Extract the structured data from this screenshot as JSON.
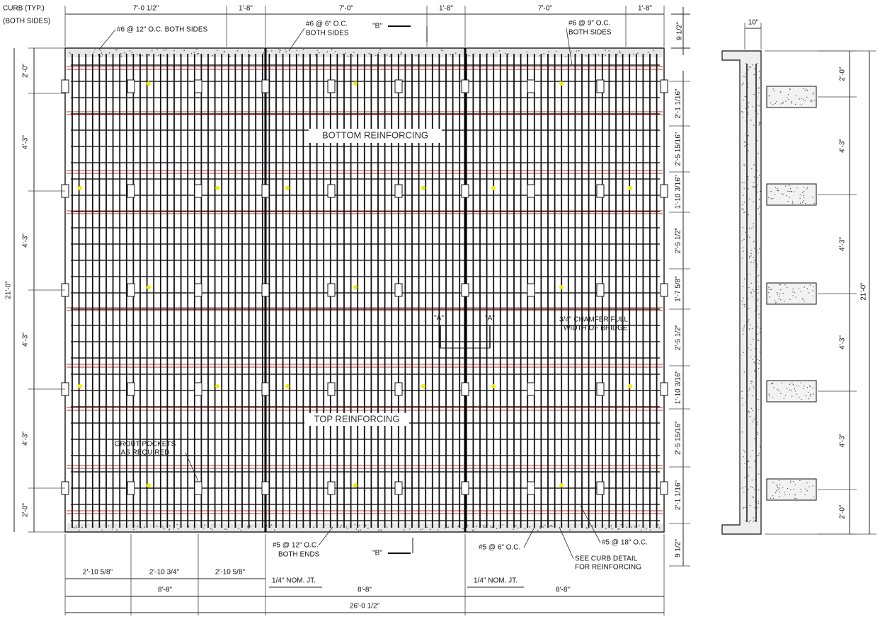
{
  "plan": {
    "curb_note": [
      "CURB (TYP.)",
      "(BOTH SIDES)"
    ],
    "top_dims": [
      "7'-0 1/2\"",
      "1'-8\"",
      "7'-0\"",
      "1'-8\"",
      "7'-0\"",
      "1'-8\""
    ],
    "top_edge_dim": "9 1/2\"",
    "callouts_top": [
      "#6 @ 12\" O.C. BOTH SIDES",
      "#6 @ 6\" O.C.",
      "BOTH SIDES",
      "#6 @ 9\" O.C.",
      "BOTH SIDES"
    ],
    "section_b": [
      "\"B\"",
      "\"B\""
    ],
    "labels": [
      "BOTTOM REINFORCING",
      "TOP REINFORCING",
      "GROUT POCKETS",
      "AS REQUIRED",
      "3/4\" CHAMFER FULL",
      "WIDTH OF BRIDGE"
    ],
    "section_a": [
      "\"A\"",
      "\"A\""
    ],
    "left_dims": [
      "2'-0\"",
      "4'-3\"",
      "4'-3\"",
      "4'-3\"",
      "4'-3\"",
      "2'-0\""
    ],
    "overall_width": "21'-0\"",
    "right_dims": [
      "2'-1 1/16\"",
      "2'-5 15/16\"",
      "1'-10 3/16\"",
      "2'-5 1/2\"",
      "1'-7 5/8\"",
      "2'-5 1/2\"",
      "1'-10 3/16\"",
      "2'-5 15/16\"",
      "2'-1 1/16\""
    ],
    "bottom_edge_dim": "9 1/2\"",
    "callouts_bottom": [
      "#5 @ 12\" O.C.",
      "BOTH ENDS",
      "#5 @ 6\" O.C.",
      "SEE CURB DETAIL",
      "FOR REINFORCING",
      "#5 @ 18\" O.C."
    ],
    "bottom_dims": [
      "2'-10 5/8\"",
      "2'-10 3/4\"",
      "2'-10 5/8\""
    ],
    "joints": [
      "1/4\" NOM. JT.",
      "1/4\" NOM. JT."
    ],
    "panel_dims": [
      "8'-8\"",
      "8'-8\"",
      "8'-8\""
    ],
    "overall_length": "26'-0 1/2\""
  },
  "section": {
    "curb_width": "10\"",
    "dims": [
      "2'-0\"",
      "4'-3\"",
      "4'-3\"",
      "4'-3\"",
      "4'-3\"",
      "2'-0\""
    ],
    "overall": "21'-0\""
  }
}
